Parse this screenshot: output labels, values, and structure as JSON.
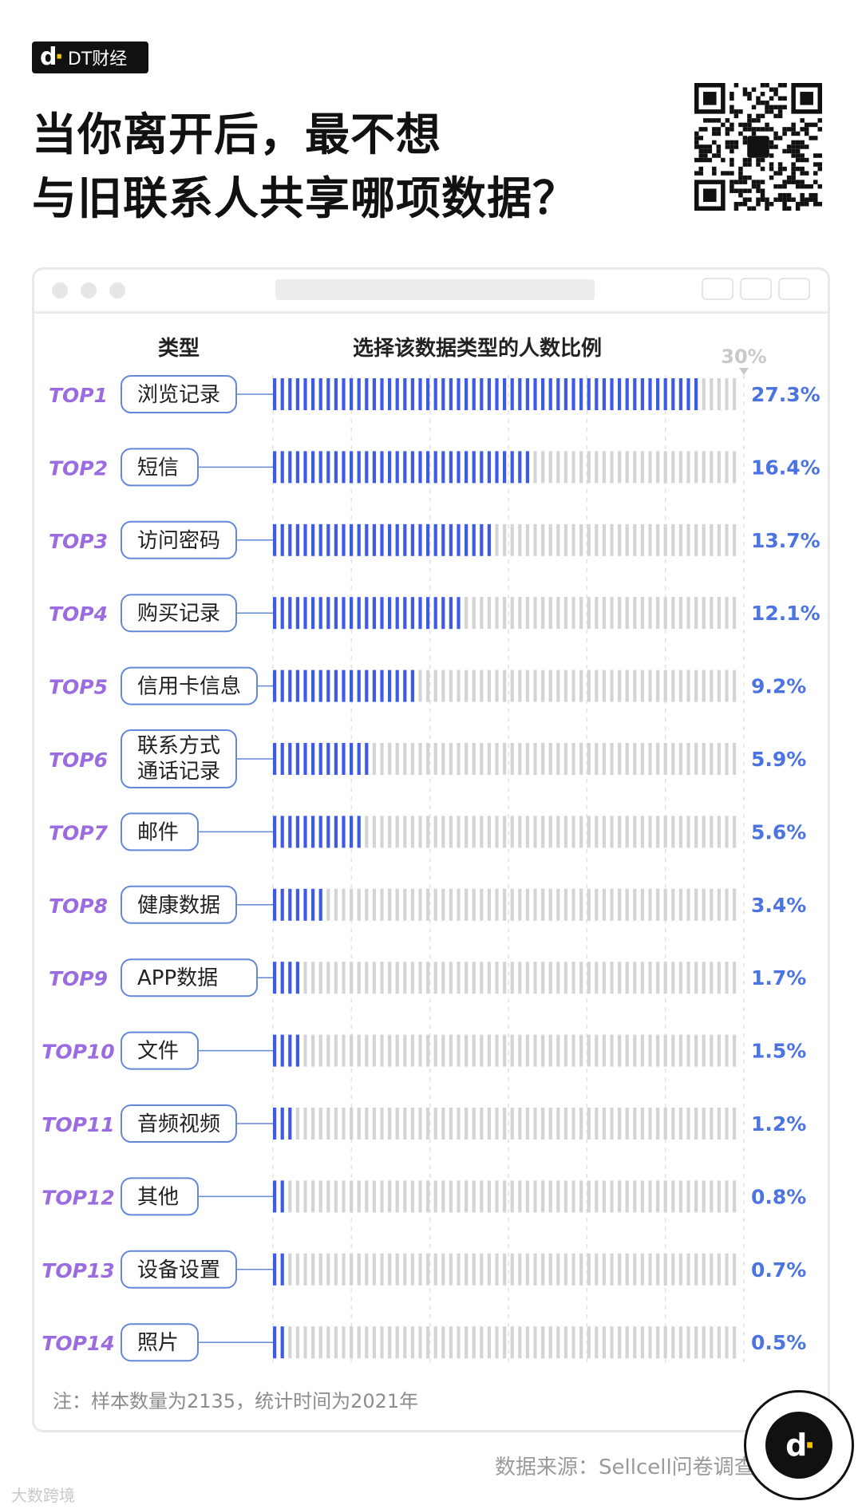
{
  "brand": {
    "name": "DT财经"
  },
  "title": {
    "line1": "当你离开后，最不想",
    "line2": "与旧联系人共享哪项数据？"
  },
  "chart_data": {
    "type": "bar",
    "column_headers": {
      "category": "类型",
      "value": "选择该数据类型的人数比例"
    },
    "axis_max_label": "30%",
    "xlim": [
      0,
      30
    ],
    "unit": "%",
    "colors": {
      "bar": "#3d5ae8",
      "track": "#d4d4d4",
      "rank": "#9a6ce0",
      "value": "#4c74e0",
      "label_border": "#6488d8"
    },
    "items": [
      {
        "rank": "TOP1",
        "category": [
          "浏览记录"
        ],
        "value": 27.3,
        "label": "27.3%"
      },
      {
        "rank": "TOP2",
        "category": [
          "短信"
        ],
        "value": 16.4,
        "label": "16.4%"
      },
      {
        "rank": "TOP3",
        "category": [
          "访问密码"
        ],
        "value": 13.7,
        "label": "13.7%"
      },
      {
        "rank": "TOP4",
        "category": [
          "购买记录"
        ],
        "value": 12.1,
        "label": "12.1%"
      },
      {
        "rank": "TOP5",
        "category": [
          "信用卡信息"
        ],
        "value": 9.2,
        "label": "9.2%"
      },
      {
        "rank": "TOP6",
        "category": [
          "联系方式",
          "通话记录"
        ],
        "value": 5.9,
        "label": "5.9%"
      },
      {
        "rank": "TOP7",
        "category": [
          "邮件"
        ],
        "value": 5.6,
        "label": "5.6%"
      },
      {
        "rank": "TOP8",
        "category": [
          "健康数据"
        ],
        "value": 3.4,
        "label": "3.4%"
      },
      {
        "rank": "TOP9",
        "category": [
          "APP数据"
        ],
        "value": 1.7,
        "label": "1.7%"
      },
      {
        "rank": "TOP10",
        "category": [
          "文件"
        ],
        "value": 1.5,
        "label": "1.5%"
      },
      {
        "rank": "TOP11",
        "category": [
          "音频视频"
        ],
        "value": 1.2,
        "label": "1.2%"
      },
      {
        "rank": "TOP12",
        "category": [
          "其他"
        ],
        "value": 0.8,
        "label": "0.8%"
      },
      {
        "rank": "TOP13",
        "category": [
          "设备设置"
        ],
        "value": 0.7,
        "label": "0.7%"
      },
      {
        "rank": "TOP14",
        "category": [
          "照片"
        ],
        "value": 0.5,
        "label": "0.5%"
      }
    ]
  },
  "footer": {
    "note": "注：样本数量为2135，统计时间为2021年",
    "source": "数据来源：Sellcell问卷调查",
    "watermark": "大数跨境"
  }
}
